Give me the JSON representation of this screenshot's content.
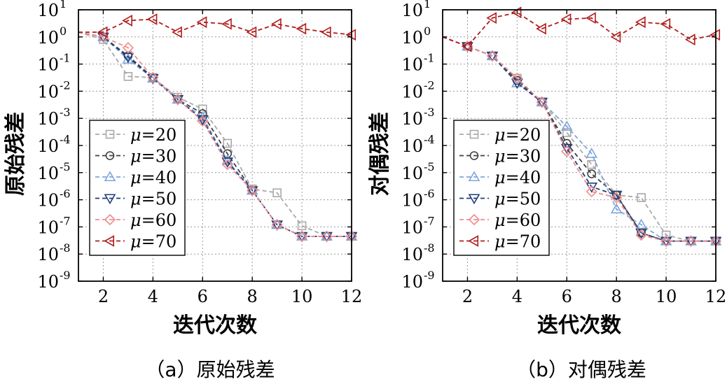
{
  "figure_captions": [
    "（a）原始残差",
    "（b）对偶残差"
  ],
  "chart_data": [
    {
      "type": "line",
      "panel_label": "（a）原始残差",
      "xlabel": "迭代次数",
      "ylabel": "原始残差",
      "x": [
        1,
        2,
        3,
        4,
        5,
        6,
        7,
        8,
        9,
        10,
        11,
        12
      ],
      "xlim": [
        1,
        12
      ],
      "xticks": [
        "2",
        "4",
        "6",
        "8",
        "10",
        "12"
      ],
      "yscale": "log",
      "ylim_exp": [
        -9,
        1
      ],
      "ytick_exponents": [
        "1",
        "0",
        "-1",
        "-2",
        "-3",
        "-4",
        "-5",
        "-6",
        "-7",
        "-8",
        "-9"
      ],
      "ytick_base": "10",
      "grid": true,
      "legend_position": "center-left",
      "legend_symbol": "μ",
      "series": [
        {
          "name": "μ=20",
          "label_value": "=20",
          "color": "#a9a9a9",
          "marker": "square",
          "values": [
            1.5,
            0.8,
            0.035,
            0.032,
            0.006,
            0.0022,
            0.00012,
            2.5e-06,
            1.8e-06,
            1.1e-07,
            4.5e-08,
            4.5e-08
          ]
        },
        {
          "name": "μ=30",
          "label_value": "=30",
          "color": "#404040",
          "marker": "circle",
          "values": [
            1.5,
            1.0,
            0.2,
            0.032,
            0.005,
            0.0015,
            5e-05,
            2.2e-06,
            1.2e-07,
            4.5e-08,
            4.5e-08,
            4.5e-08
          ]
        },
        {
          "name": "μ=40",
          "label_value": "=40",
          "color": "#7fa6dc",
          "marker": "triangle-up",
          "values": [
            1.5,
            1.0,
            0.15,
            0.03,
            0.005,
            0.0011,
            2.8e-05,
            2.2e-06,
            1.2e-07,
            4.5e-08,
            4.5e-08,
            4.5e-08
          ]
        },
        {
          "name": "μ=50",
          "label_value": "=50",
          "color": "#1f3f7a",
          "marker": "triangle-down",
          "values": [
            1.5,
            1.0,
            0.18,
            0.03,
            0.005,
            0.0009,
            2.5e-05,
            2.2e-06,
            1.2e-07,
            4.5e-08,
            4.5e-08,
            4.5e-08
          ]
        },
        {
          "name": "μ=60",
          "label_value": "=60",
          "color": "#f08c8c",
          "marker": "diamond",
          "values": [
            1.5,
            1.0,
            0.4,
            0.032,
            0.005,
            0.0008,
            2e-05,
            2.2e-06,
            1.2e-07,
            4.5e-08,
            4.5e-08,
            4.5e-08
          ]
        },
        {
          "name": "μ=70",
          "label_value": "=70",
          "color": "#b01c1c",
          "marker": "triangle-left",
          "values": [
            1.5,
            1.5,
            4.0,
            4.5,
            1.5,
            3.5,
            3.0,
            1.5,
            3.0,
            2.0,
            1.5,
            1.2
          ]
        }
      ]
    },
    {
      "type": "line",
      "panel_label": "（b）对偶残差",
      "xlabel": "迭代次数",
      "ylabel": "对偶残差",
      "x": [
        1,
        2,
        3,
        4,
        5,
        6,
        7,
        8,
        9,
        10,
        11,
        12
      ],
      "xlim": [
        1,
        12
      ],
      "xticks": [
        "2",
        "4",
        "6",
        "8",
        "10",
        "12"
      ],
      "yscale": "log",
      "ylim_exp": [
        -9,
        1
      ],
      "ytick_exponents": [
        "1",
        "0",
        "-1",
        "-2",
        "-3",
        "-4",
        "-5",
        "-6",
        "-7",
        "-8",
        "-9"
      ],
      "ytick_base": "10",
      "grid": true,
      "legend_position": "center-left",
      "legend_symbol": "μ",
      "series": [
        {
          "name": "μ=20",
          "label_value": "=20",
          "color": "#a9a9a9",
          "marker": "square",
          "values": [
            1.0,
            0.45,
            0.2,
            0.03,
            0.004,
            0.0003,
            2e-05,
            1.5e-06,
            1.2e-06,
            5e-08,
            3e-08,
            3e-08
          ]
        },
        {
          "name": "μ=30",
          "label_value": "=30",
          "color": "#404040",
          "marker": "circle",
          "values": [
            1.0,
            0.45,
            0.2,
            0.025,
            0.004,
            0.00012,
            9e-06,
            1.5e-06,
            6e-08,
            3e-08,
            3e-08,
            3e-08
          ]
        },
        {
          "name": "μ=40",
          "label_value": "=40",
          "color": "#7fa6dc",
          "marker": "triangle-up",
          "values": [
            1.0,
            0.45,
            0.2,
            0.02,
            0.004,
            0.0005,
            5e-05,
            4.5e-07,
            1.2e-07,
            3e-08,
            3e-08,
            3e-08
          ]
        },
        {
          "name": "μ=50",
          "label_value": "=50",
          "color": "#1f3f7a",
          "marker": "triangle-down",
          "values": [
            1.0,
            0.45,
            0.2,
            0.02,
            0.004,
            8e-05,
            3e-06,
            1.5e-06,
            6e-08,
            3e-08,
            3e-08,
            3e-08
          ]
        },
        {
          "name": "μ=60",
          "label_value": "=60",
          "color": "#f08c8c",
          "marker": "diamond",
          "values": [
            1.0,
            0.45,
            0.2,
            0.03,
            0.004,
            6e-05,
            2e-06,
            1.2e-06,
            5e-08,
            3e-08,
            3e-08,
            3e-08
          ]
        },
        {
          "name": "μ=70",
          "label_value": "=70",
          "color": "#b01c1c",
          "marker": "triangle-left",
          "values": [
            1.0,
            0.45,
            5.0,
            8.0,
            2.0,
            4.5,
            5.0,
            1.0,
            3.5,
            3.0,
            0.8,
            1.2
          ]
        }
      ]
    }
  ]
}
